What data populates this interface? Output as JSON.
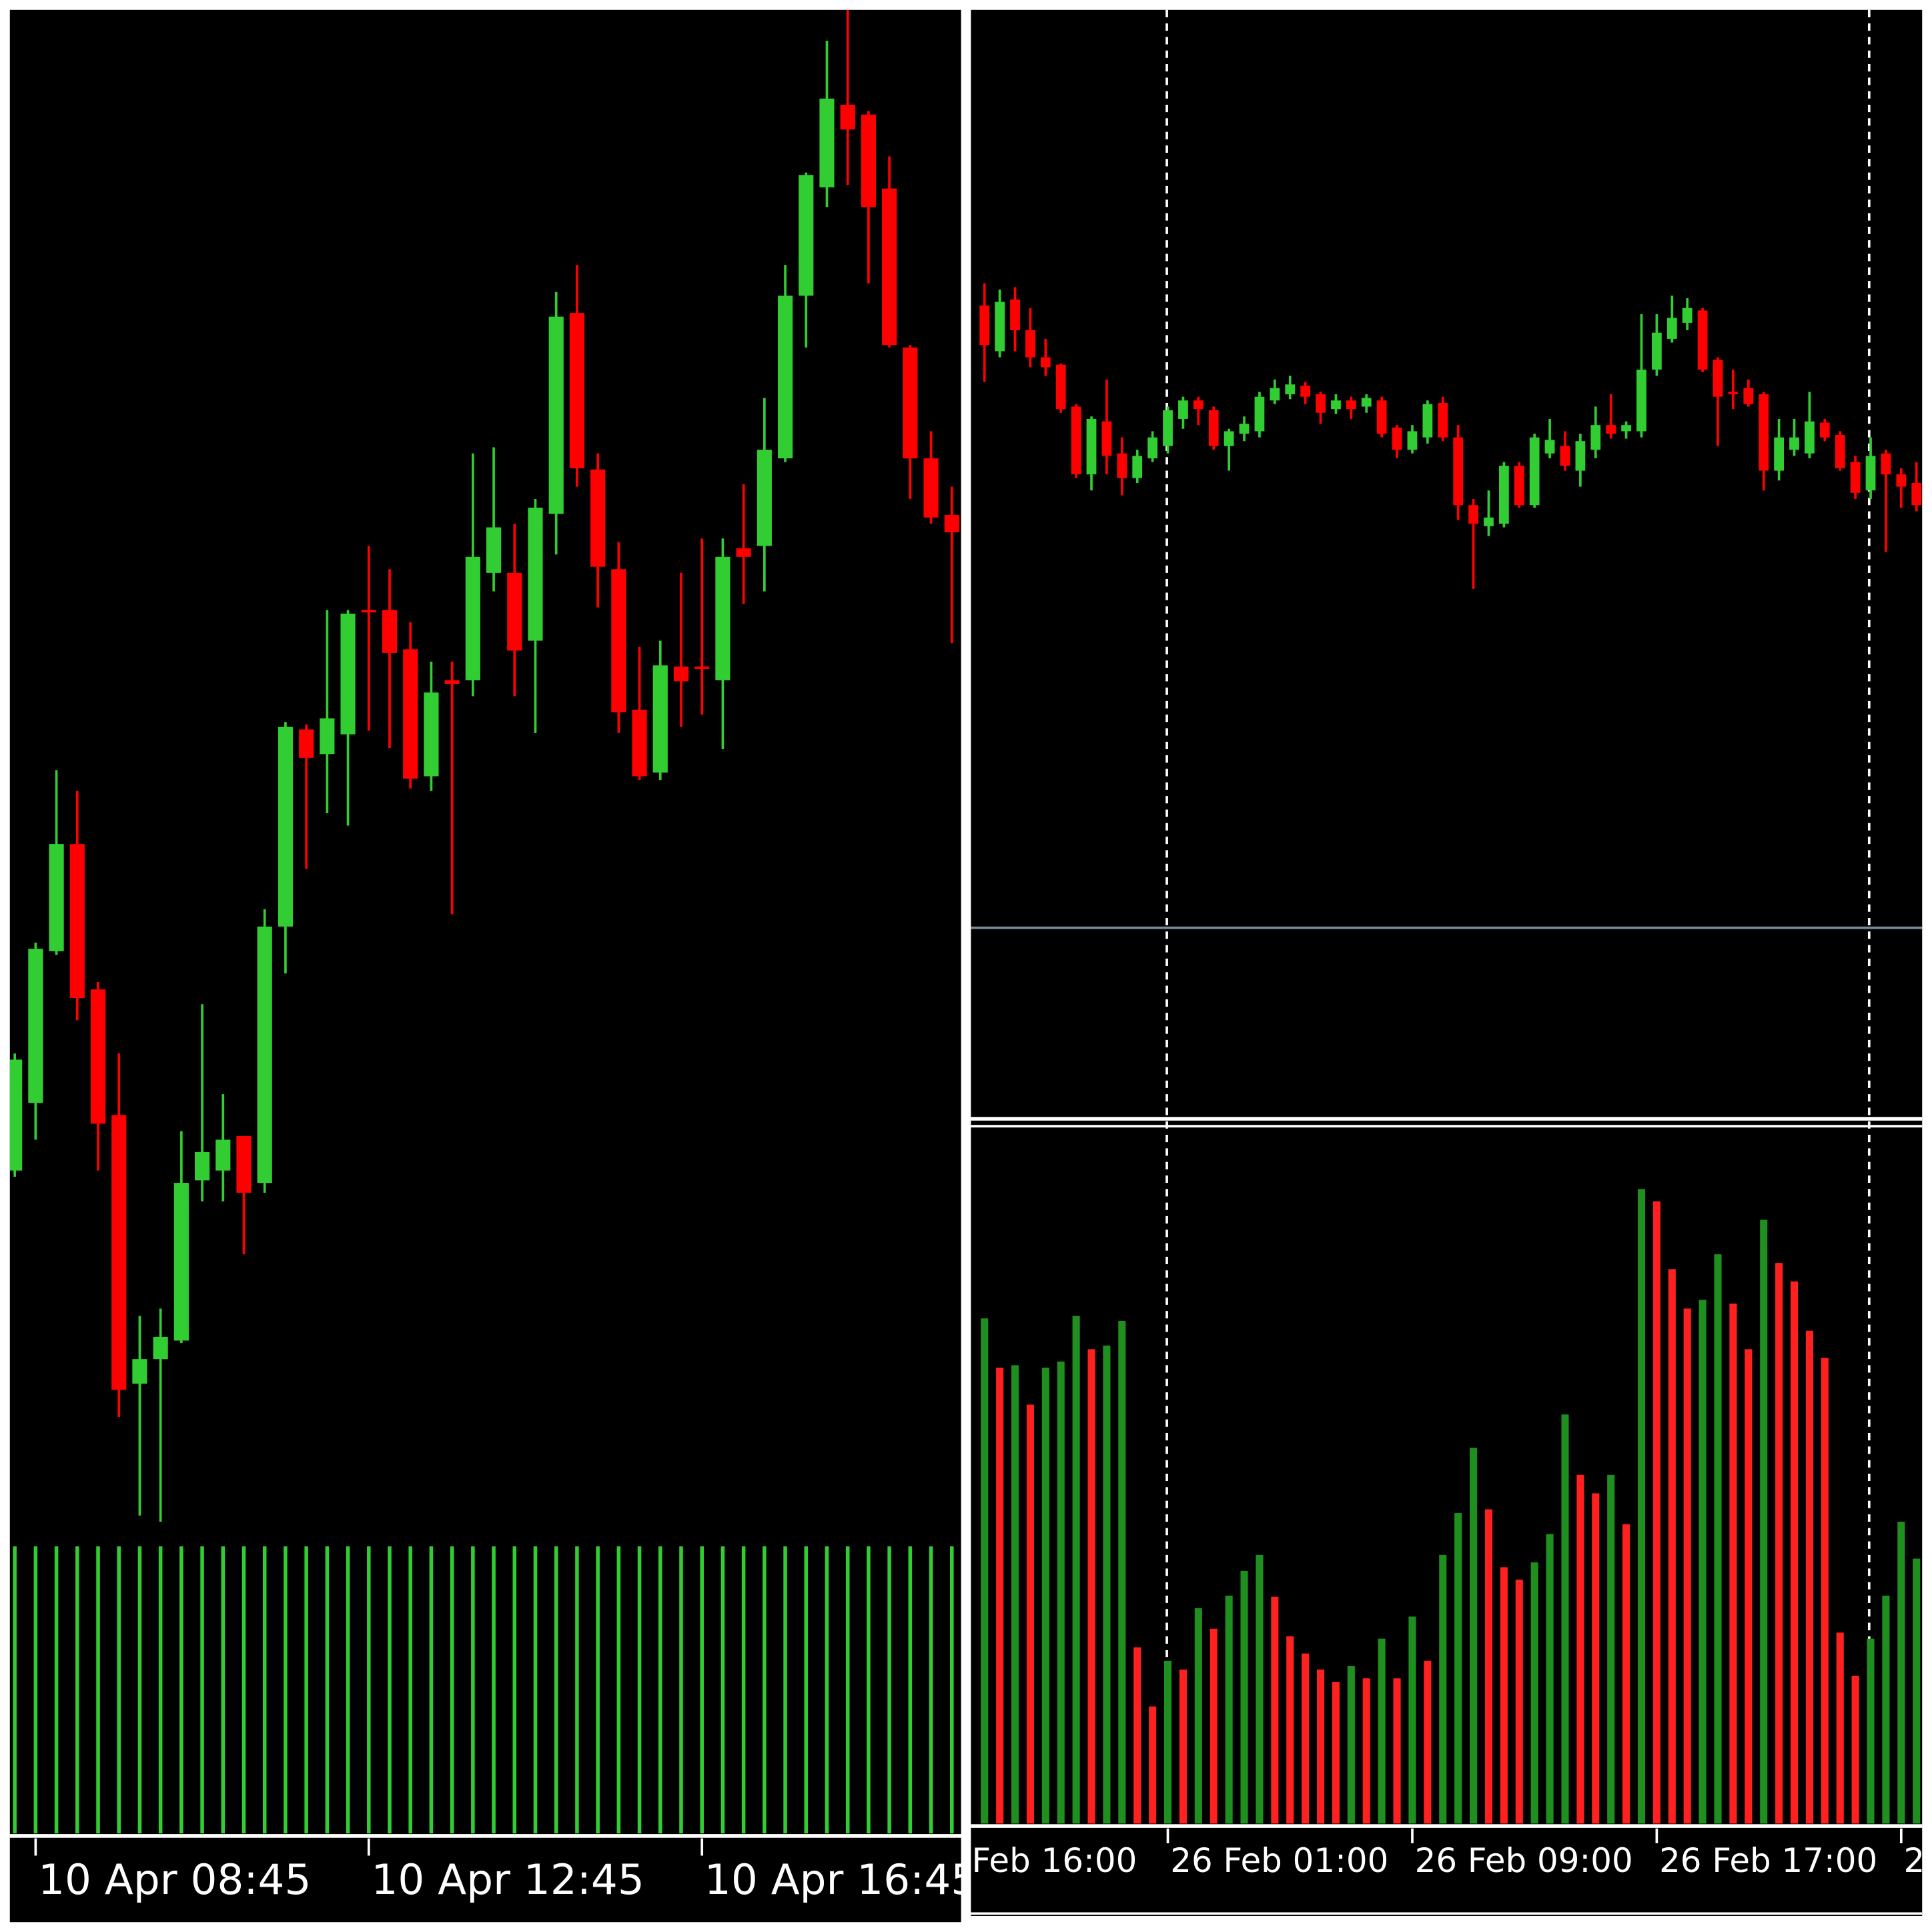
{
  "chart_data": [
    {
      "type": "candlestick",
      "xticks": [
        {
          "value": 1,
          "label": "10 Apr 08:45"
        },
        {
          "value": 17,
          "label": "10 Apr 12:45"
        },
        {
          "value": 33,
          "label": "10 Apr 16:45"
        }
      ],
      "open": [
        550,
        605,
        728,
        815,
        697,
        595,
        377,
        397,
        412,
        542,
        550,
        578,
        540,
        748,
        908,
        888,
        904,
        1005,
        1005,
        973,
        870,
        948,
        948,
        1035,
        1035,
        980,
        1083,
        1246,
        1119,
        1038,
        924,
        873,
        959,
        959,
        948,
        1055,
        1057,
        1128,
        1260,
        1348,
        1415,
        1407,
        1347,
        1218,
        1128,
        1082
      ],
      "high": [
        645,
        735,
        875,
        858,
        703,
        645,
        432,
        438,
        582,
        685,
        612,
        578,
        762,
        914,
        912,
        1005,
        1005,
        1057,
        1038,
        995,
        963,
        963,
        1132,
        1137,
        1075,
        1095,
        1263,
        1285,
        1132,
        1060,
        975,
        980,
        1035,
        1063,
        1063,
        1107,
        1177,
        1285,
        1360,
        1467,
        1492,
        1410,
        1373,
        1220,
        1150,
        1105
      ],
      "low": [
        545,
        575,
        725,
        672,
        550,
        350,
        270,
        265,
        410,
        525,
        525,
        482,
        532,
        710,
        795,
        840,
        830,
        907,
        893,
        860,
        858,
        758,
        935,
        1020,
        935,
        905,
        1050,
        1105,
        1007,
        905,
        867,
        867,
        910,
        920,
        892,
        1010,
        1020,
        1125,
        1218,
        1332,
        1350,
        1270,
        1218,
        1095,
        1075,
        978
      ],
      "close": [
        640,
        730,
        815,
        690,
        588,
        372,
        397,
        415,
        540,
        565,
        575,
        532,
        748,
        910,
        885,
        917,
        1002,
        1003,
        970,
        868,
        938,
        945,
        1048,
        1072,
        972,
        1088,
        1243,
        1120,
        1040,
        922,
        870,
        960,
        947,
        957,
        1048,
        1048,
        1135,
        1260,
        1358,
        1420,
        1395,
        1332,
        1220,
        1128,
        1080,
        1068
      ],
      "volume": [
        233,
        233,
        233,
        233,
        233,
        233,
        233,
        233,
        233,
        233,
        233,
        233,
        233,
        233,
        233,
        233,
        233,
        233,
        233,
        233,
        233,
        233,
        233,
        233,
        233,
        233,
        233,
        233,
        233,
        233,
        233,
        233,
        233,
        233,
        233,
        233,
        233,
        233,
        233,
        233,
        233,
        233,
        233,
        233,
        233,
        233
      ],
      "ylim": [
        10,
        1492
      ],
      "volume_lim": [
        0,
        250
      ],
      "up_color": "#32cd32",
      "down_color": "#ff0000",
      "volume_color": "#32cd32"
    },
    {
      "type": "candlestick",
      "xticks": [
        {
          "value": -1,
          "label": "Feb 16:00"
        },
        {
          "value": 12,
          "label": "26 Feb 01:00"
        },
        {
          "value": 28,
          "label": "26 Feb 09:00"
        },
        {
          "value": 44,
          "label": "26 Feb 17:00"
        },
        {
          "value": 60,
          "label": "2"
        }
      ],
      "open": [
        752,
        715,
        757,
        732,
        710,
        704,
        670,
        615,
        658,
        632,
        612,
        628,
        638,
        660,
        675,
        667,
        638,
        648,
        650,
        675,
        680,
        687,
        680,
        668,
        675,
        670,
        675,
        653,
        635,
        645,
        673,
        645,
        590,
        573,
        575,
        622,
        590,
        632,
        638,
        618,
        635,
        655,
        650,
        650,
        700,
        725,
        738,
        748,
        708,
        682,
        685,
        680,
        618,
        635,
        632,
        657,
        647,
        625,
        602,
        632,
        615,
        608
      ],
      "high": [
        770,
        765,
        767,
        750,
        725,
        705,
        672,
        662,
        692,
        645,
        635,
        650,
        670,
        678,
        678,
        670,
        652,
        662,
        682,
        692,
        695,
        690,
        682,
        680,
        678,
        680,
        678,
        655,
        655,
        675,
        678,
        655,
        595,
        602,
        625,
        625,
        648,
        660,
        650,
        648,
        670,
        680,
        658,
        745,
        745,
        760,
        758,
        750,
        710,
        700,
        692,
        682,
        660,
        660,
        682,
        660,
        650,
        630,
        645,
        635,
        620,
        625
      ],
      "low": [
        690,
        710,
        715,
        702,
        695,
        665,
        612,
        602,
        615,
        598,
        608,
        625,
        632,
        652,
        655,
        635,
        618,
        642,
        645,
        672,
        676,
        672,
        656,
        664,
        660,
        665,
        645,
        628,
        632,
        640,
        642,
        578,
        522,
        565,
        572,
        588,
        588,
        628,
        618,
        605,
        628,
        644,
        644,
        645,
        695,
        722,
        732,
        698,
        638,
        668,
        670,
        602,
        610,
        630,
        628,
        642,
        618,
        595,
        595,
        552,
        588,
        585
      ],
      "close": [
        720,
        755,
        732,
        710,
        702,
        668,
        615,
        660,
        630,
        612,
        630,
        645,
        667,
        675,
        668,
        638,
        650,
        656,
        678,
        685,
        688,
        678,
        665,
        675,
        668,
        677,
        648,
        635,
        650,
        672,
        645,
        590,
        575,
        580,
        622,
        590,
        645,
        643,
        622,
        642,
        655,
        648,
        655,
        700,
        730,
        742,
        750,
        700,
        678,
        680,
        672,
        618,
        645,
        645,
        658,
        645,
        620,
        600,
        630,
        615,
        605,
        590
      ],
      "volume": [
        410,
        370,
        372,
        340,
        370,
        375,
        412,
        385,
        388,
        408,
        143,
        95,
        132,
        125,
        175,
        158,
        185,
        205,
        218,
        184,
        152,
        138,
        125,
        115,
        128,
        118,
        150,
        118,
        168,
        132,
        218,
        252,
        305,
        255,
        208,
        198,
        212,
        235,
        332,
        283,
        268,
        283,
        243,
        515,
        505,
        450,
        418,
        425,
        462,
        422,
        385,
        490,
        455,
        440,
        400,
        378,
        155,
        120,
        150,
        185,
        245,
        215
      ],
      "volume_colors": [
        "#1f8f1f",
        "#ff2020",
        "#1f8f1f",
        "#ff2020",
        "#1f8f1f",
        "#1f8f1f",
        "#1f8f1f",
        "#ff2020",
        "#1f8f1f",
        "#1f8f1f",
        "#ff2020",
        "#ff2020",
        "#1f8f1f",
        "#ff2020",
        "#1f8f1f",
        "#ff2020",
        "#1f8f1f",
        "#1f8f1f",
        "#1f8f1f",
        "#ff2020",
        "#ff2020",
        "#ff2020",
        "#ff2020",
        "#ff2020",
        "#1f8f1f",
        "#ff2020",
        "#1f8f1f",
        "#ff2020",
        "#1f8f1f",
        "#ff2020",
        "#1f8f1f",
        "#1f8f1f",
        "#1f8f1f",
        "#ff2020",
        "#ff2020",
        "#ff2020",
        "#1f8f1f",
        "#1f8f1f",
        "#1f8f1f",
        "#ff2020",
        "#ff2020",
        "#1f8f1f",
        "#ff2020",
        "#1f8f1f",
        "#ff2020",
        "#ff2020",
        "#ff2020",
        "#1f8f1f",
        "#1f8f1f",
        "#ff2020",
        "#ff2020",
        "#1f8f1f",
        "#ff2020",
        "#ff2020",
        "#ff2020",
        "#ff2020",
        "#ff2020",
        "#ff2020",
        "#1f8f1f",
        "#1f8f1f",
        "#1f8f1f",
        "#1f8f1f"
      ],
      "ylim": [
        95,
        992
      ],
      "volume_lim": [
        0,
        565
      ],
      "up_color": "#32cd32",
      "down_color": "#ff0000"
    }
  ]
}
